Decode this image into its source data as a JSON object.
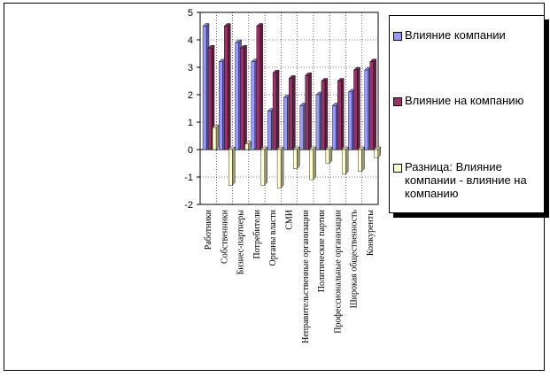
{
  "chart_data": {
    "type": "bar",
    "categories": [
      "Работники",
      "Собственники",
      "Бизнес-партнеры",
      "Потребители",
      "Органы власти",
      "СМИ",
      "Неправительственные организации",
      "Политические партии",
      "Профессиональные организации",
      "Широкая общественность",
      "Конкуренты"
    ],
    "series": [
      {
        "name": "Влияние компании",
        "color": "#9999FF",
        "values": [
          4.5,
          3.2,
          3.9,
          3.2,
          1.4,
          1.9,
          1.6,
          2.0,
          1.6,
          2.1,
          2.9
        ]
      },
      {
        "name": "Влияние на компанию",
        "color": "#993366",
        "values": [
          3.7,
          4.5,
          3.7,
          4.5,
          2.8,
          2.6,
          2.7,
          2.5,
          2.5,
          2.9,
          3.2
        ]
      },
      {
        "name": "Разница: Влияние компании - влияние на компанию",
        "color": "#FFFFCC",
        "values": [
          0.8,
          -1.3,
          0.2,
          -1.3,
          -1.4,
          -0.7,
          -1.1,
          -0.5,
          -0.9,
          -0.8,
          -0.3
        ]
      }
    ],
    "title": "",
    "xlabel": "",
    "ylabel": "",
    "ylim": [
      -2,
      5
    ],
    "yticks": [
      "-2",
      "-1",
      "0",
      "1",
      "2",
      "3",
      "4",
      "5"
    ],
    "grid": true,
    "legend_position": "right"
  }
}
